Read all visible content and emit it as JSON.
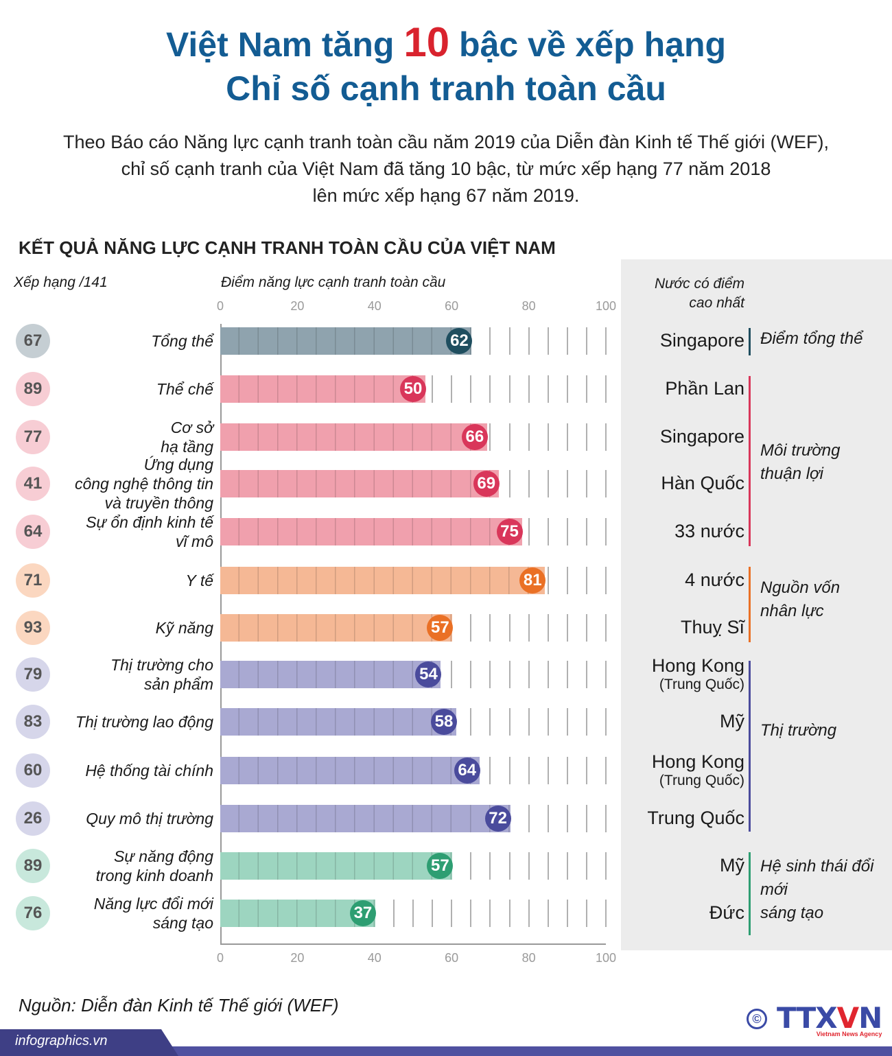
{
  "title": {
    "line1_pre": "Việt Nam tăng ",
    "line1_num": "10",
    "line1_post": " bậc về xếp hạng",
    "line2": "Chỉ số cạnh tranh toàn cầu"
  },
  "subtitle": "Theo Báo cáo Năng lực cạnh tranh toàn cầu năm 2019 của Diễn đàn Kinh tế Thế giới (WEF),\nchỉ số cạnh tranh của Việt Nam đã tăng 10 bậc, từ mức xếp hạng 77 năm 2018\nlên mức xếp hạng 67 năm 2019.",
  "section_title": "KẾT QUẢ NĂNG LỰC CẠNH TRANH TOÀN CẦU CỦA VIỆT NAM",
  "rank_header": "Xếp hạng /141",
  "score_header": "Điểm năng lực cạnh tranh toàn cầu",
  "panel_header": "Nước có điểm\ncao nhất",
  "colors": {
    "overall": {
      "bar": "#8fa3ae",
      "dot": "#1f4e5f",
      "rank": "#c5ced3"
    },
    "enabling": {
      "bar": "#f0a0ad",
      "dot": "#d9365a",
      "rank": "#f7cdd4"
    },
    "human": {
      "bar": "#f5b895",
      "dot": "#ea7025",
      "rank": "#fbd7c0"
    },
    "markets": {
      "bar": "#a9a9d2",
      "dot": "#4a4b9c",
      "rank": "#d6d6ea"
    },
    "innovation": {
      "bar": "#9dd5c0",
      "dot": "#2e9e72",
      "rank": "#c8e8dc"
    },
    "title": "#135c93",
    "highlight": "#d9232e"
  },
  "chart_data": {
    "type": "bar",
    "orientation": "horizontal",
    "xlim": [
      0,
      100
    ],
    "xticks": [
      0,
      20,
      40,
      60,
      80,
      100
    ],
    "xlabel": "Điểm năng lực cạnh tranh toàn cầu",
    "grid": true,
    "categories": [
      "Tổng thể",
      "Thể chế",
      "Cơ sở\nhạ tầng",
      "Ứng dụng\ncông nghệ thông tin\nvà truyền thông",
      "Sự ổn định kinh tế\nvĩ  mô",
      "Y tế",
      "Kỹ năng",
      "Thị trường cho\nsản phẩm",
      "Thị trường lao động",
      "Hệ thống tài chính",
      "Quy mô thị trường",
      "Sự năng động\ntrong kinh doanh",
      "Năng lực đổi mới\nsáng tạo"
    ],
    "values": [
      62,
      50,
      66,
      69,
      75,
      81,
      57,
      54,
      58,
      64,
      72,
      57,
      37
    ],
    "ranks": [
      67,
      89,
      77,
      41,
      64,
      71,
      93,
      79,
      83,
      60,
      26,
      89,
      76
    ],
    "groups": [
      "overall",
      "enabling",
      "enabling",
      "enabling",
      "enabling",
      "human",
      "human",
      "markets",
      "markets",
      "markets",
      "markets",
      "innovation",
      "innovation"
    ],
    "top_country": [
      {
        "name": "Singapore"
      },
      {
        "name": "Phần Lan"
      },
      {
        "name": "Singapore"
      },
      {
        "name": "Hàn Quốc"
      },
      {
        "name": "33 nước"
      },
      {
        "name": "4 nước"
      },
      {
        "name": "Thuỵ Sĩ"
      },
      {
        "name": "Hong Kong",
        "note": "(Trung Quốc)"
      },
      {
        "name": "Mỹ"
      },
      {
        "name": "Hong Kong",
        "note": "(Trung Quốc)"
      },
      {
        "name": "Trung Quốc"
      },
      {
        "name": "Mỹ"
      },
      {
        "name": "Đức"
      }
    ]
  },
  "group_labels": {
    "overall": "Điểm tổng thể",
    "enabling": "Môi trường\nthuận lợi",
    "human": "Nguồn vốn\nnhân lực",
    "markets": "Thị trường",
    "innovation": "Hệ sinh thái đổi\nmới\nsáng tạo"
  },
  "source": "Nguồn: Diễn đàn Kinh tế Thế giới (WEF)",
  "site": "infographics.vn",
  "logo": {
    "copyright": "©",
    "brand_a": "TTX",
    "brand_v": "V",
    "brand_n": "N",
    "tagline": "Vietnam News Agency"
  }
}
